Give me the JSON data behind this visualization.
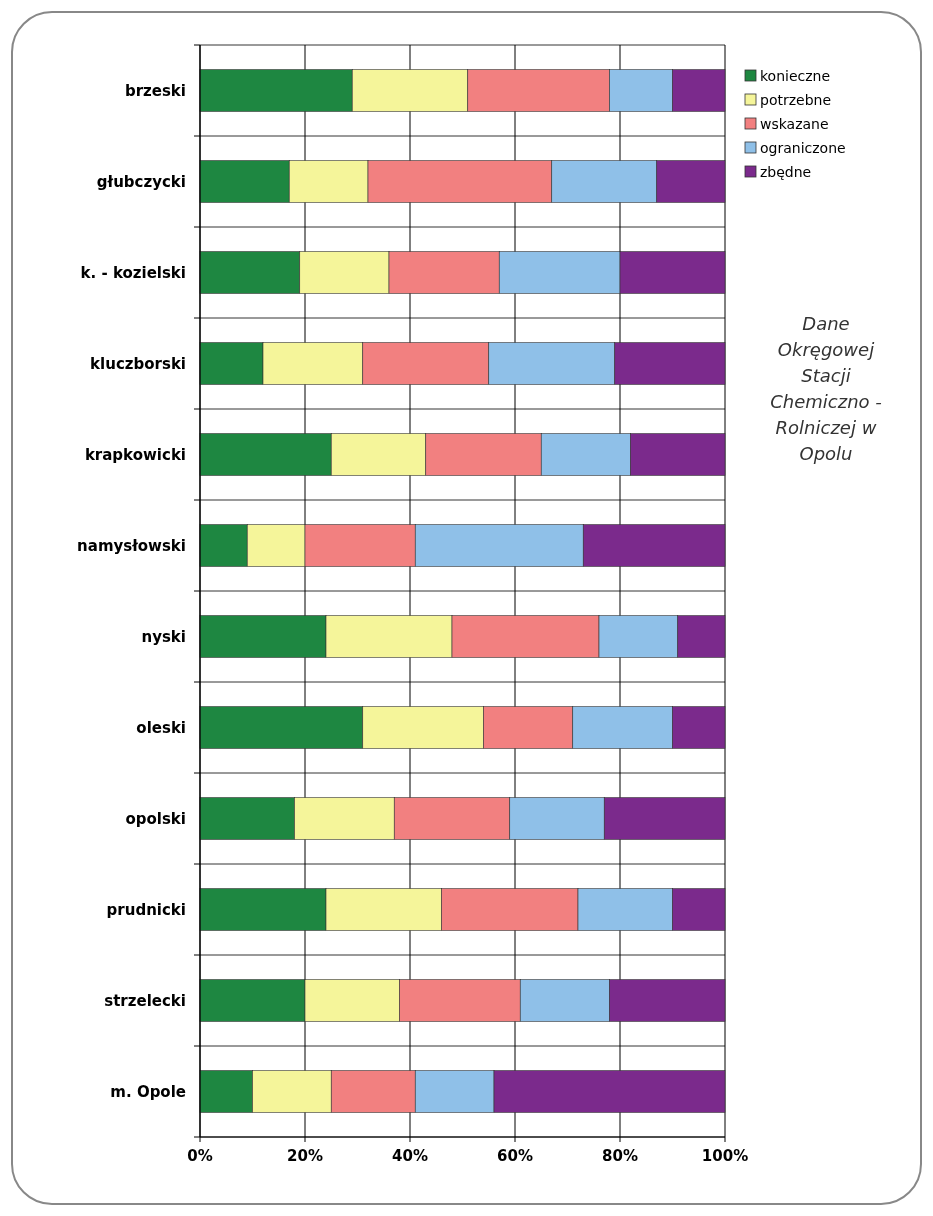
{
  "chart_data": {
    "type": "bar",
    "orientation": "horizontal",
    "stacked": true,
    "categories": [
      "brzeski",
      "głubczycki",
      "k. - kozielski",
      "kluczborski",
      "krapkowicki",
      "namysłowski",
      "nyski",
      "oleski",
      "opolski",
      "prudnicki",
      "strzelecki",
      "m. Opole"
    ],
    "series": [
      {
        "name": "konieczne",
        "color": "#1e8741",
        "values": [
          29,
          17,
          19,
          12,
          25,
          9,
          24,
          31,
          18,
          24,
          20,
          10
        ]
      },
      {
        "name": "potrzebne",
        "color": "#f5f59a",
        "values": [
          22,
          15,
          17,
          19,
          18,
          11,
          24,
          23,
          19,
          22,
          18,
          15
        ]
      },
      {
        "name": "wskazane",
        "color": "#f28080",
        "values": [
          27,
          35,
          21,
          24,
          22,
          21,
          28,
          17,
          22,
          26,
          23,
          16
        ]
      },
      {
        "name": "ograniczone",
        "color": "#8fc0e8",
        "values": [
          12,
          20,
          23,
          24,
          17,
          32,
          15,
          19,
          18,
          18,
          17,
          15
        ]
      },
      {
        "name": "zbędne",
        "color": "#7b2a8c",
        "values": [
          10,
          13,
          20,
          21,
          18,
          27,
          9,
          10,
          23,
          10,
          22,
          44
        ]
      }
    ],
    "xlim": [
      0,
      100
    ],
    "xticks": [
      {
        "value": 0,
        "label": "0%"
      },
      {
        "value": 20,
        "label": "20%"
      },
      {
        "value": 40,
        "label": "40%"
      },
      {
        "value": 60,
        "label": "60%"
      },
      {
        "value": 80,
        "label": "80%"
      },
      {
        "value": 100,
        "label": "100%"
      }
    ],
    "grid": true,
    "legend": "top right",
    "annotations": [
      "Dane Okręgowej Stacji Chemiczno - Rolniczej w Opolu"
    ]
  }
}
